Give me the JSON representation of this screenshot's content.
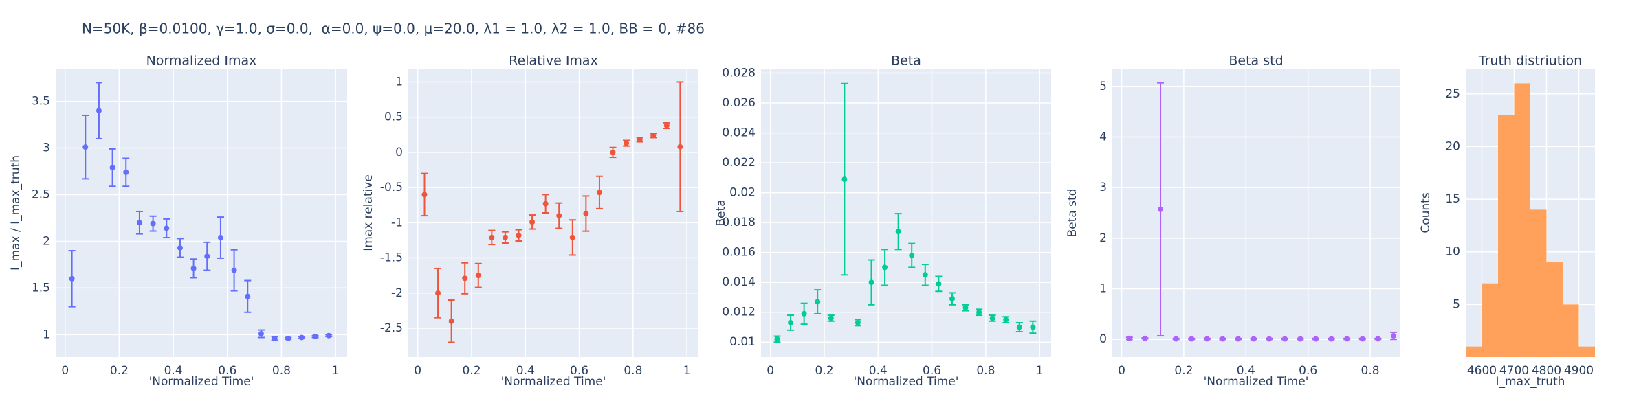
{
  "title": "N=50K, β=0.0100, γ=1.0, σ=0.0,  α=0.0, ψ=0.0, μ=20.0, λ1 = 1.0, λ2 = 1.0, BB = 0, #86",
  "chart_data": [
    {
      "type": "scatter",
      "title": "Normalized Imax",
      "xlabel": "'Normalized Time'",
      "ylabel": "I_max / I_max_truth",
      "color": "#636efa",
      "x": [
        0.025,
        0.075,
        0.125,
        0.175,
        0.225,
        0.275,
        0.325,
        0.375,
        0.425,
        0.475,
        0.525,
        0.575,
        0.625,
        0.675,
        0.725,
        0.775,
        0.825,
        0.875,
        0.925,
        0.975
      ],
      "values": [
        1.6,
        3.01,
        3.4,
        2.79,
        2.74,
        2.2,
        2.19,
        2.14,
        1.93,
        1.71,
        1.84,
        2.04,
        1.69,
        1.41,
        1.01,
        0.96,
        0.96,
        0.97,
        0.98,
        0.99
      ],
      "errors": [
        0.3,
        0.34,
        0.3,
        0.2,
        0.15,
        0.12,
        0.08,
        0.1,
        0.1,
        0.1,
        0.15,
        0.22,
        0.22,
        0.17,
        0.04,
        0.02,
        0.01,
        0.01,
        0.01,
        0.01
      ],
      "xlim": [
        -0.035,
        1.043
      ],
      "ylim": [
        0.76,
        3.85
      ],
      "xticks": [
        0,
        0.2,
        0.4,
        0.6,
        0.8,
        1
      ],
      "yticks": [
        1,
        1.5,
        2,
        2.5,
        3,
        3.5
      ],
      "grid": true
    },
    {
      "type": "scatter",
      "title": "Relative Imax",
      "xlabel": "'Normalized Time'",
      "ylabel": "Imax relative",
      "color": "#ef553b",
      "x": [
        0.025,
        0.075,
        0.125,
        0.175,
        0.225,
        0.275,
        0.325,
        0.375,
        0.425,
        0.475,
        0.525,
        0.575,
        0.625,
        0.675,
        0.725,
        0.775,
        0.825,
        0.875,
        0.925,
        0.975
      ],
      "values": [
        -0.6,
        -2.0,
        -2.4,
        -1.79,
        -1.75,
        -1.21,
        -1.21,
        -1.18,
        -0.99,
        -0.73,
        -0.9,
        -1.21,
        -0.87,
        -0.57,
        0.0,
        0.13,
        0.18,
        0.24,
        0.38,
        0.08
      ],
      "errors": [
        0.3,
        0.35,
        0.3,
        0.22,
        0.17,
        0.1,
        0.08,
        0.08,
        0.1,
        0.13,
        0.18,
        0.25,
        0.25,
        0.23,
        0.07,
        0.04,
        0.03,
        0.03,
        0.04,
        0.92
      ],
      "xlim": [
        -0.035,
        1.043
      ],
      "ylim": [
        -2.91,
        1.19
      ],
      "xticks": [
        0,
        0.2,
        0.4,
        0.6,
        0.8,
        1
      ],
      "yticks": [
        -2.5,
        -2,
        -1.5,
        -1,
        -0.5,
        0,
        0.5,
        1
      ],
      "grid": true
    },
    {
      "type": "scatter",
      "title": "Beta",
      "xlabel": "'Normalized Time'",
      "ylabel": "Beta",
      "color": "#00cc96",
      "x": [
        0.025,
        0.075,
        0.125,
        0.175,
        0.225,
        0.275,
        0.325,
        0.375,
        0.425,
        0.475,
        0.525,
        0.575,
        0.625,
        0.675,
        0.725,
        0.775,
        0.825,
        0.875,
        0.925,
        0.975
      ],
      "values": [
        0.0102,
        0.0113,
        0.0119,
        0.0127,
        0.0116,
        0.0209,
        0.0113,
        0.014,
        0.015,
        0.0174,
        0.0158,
        0.0145,
        0.0139,
        0.0129,
        0.0123,
        0.012,
        0.0116,
        0.0115,
        0.011,
        0.011
      ],
      "errors": [
        0.0002,
        0.0005,
        0.0007,
        0.0008,
        0.0002,
        0.0064,
        0.0002,
        0.0015,
        0.0012,
        0.0012,
        0.0008,
        0.0007,
        0.0005,
        0.0004,
        0.0002,
        0.0002,
        0.0002,
        0.0002,
        0.0003,
        0.0004
      ],
      "xlim": [
        -0.035,
        1.043
      ],
      "ylim": [
        0.009,
        0.0283
      ],
      "xticks": [
        0,
        0.2,
        0.4,
        0.6,
        0.8,
        1
      ],
      "yticks": [
        0.01,
        0.012,
        0.014,
        0.016,
        0.018,
        0.02,
        0.022,
        0.024,
        0.026,
        0.028
      ],
      "grid": true
    },
    {
      "type": "scatter",
      "title": "Beta std",
      "xlabel": "'Normalized Time'",
      "ylabel": "Beta std",
      "color": "#ab63fa",
      "x": [
        0.025,
        0.075,
        0.125,
        0.175,
        0.225,
        0.275,
        0.325,
        0.375,
        0.425,
        0.475,
        0.525,
        0.575,
        0.625,
        0.675,
        0.725,
        0.775,
        0.825,
        0.875
      ],
      "values": [
        0.02,
        0.02,
        2.57,
        0.01,
        0.01,
        0.01,
        0.01,
        0.01,
        0.01,
        0.01,
        0.01,
        0.01,
        0.01,
        0.01,
        0.01,
        0.01,
        0.01,
        0.07
      ],
      "errors": [
        0.02,
        0.01,
        2.5,
        0.01,
        0.01,
        0.01,
        0.01,
        0.01,
        0.01,
        0.01,
        0.01,
        0.01,
        0.01,
        0.01,
        0.01,
        0.01,
        0.01,
        0.07
      ],
      "xlim": [
        -0.03,
        0.895
      ],
      "ylim": [
        -0.35,
        5.35
      ],
      "xticks": [
        0,
        0.2,
        0.4,
        0.6,
        0.8
      ],
      "yticks": [
        0,
        1,
        2,
        3,
        4,
        5
      ],
      "grid": true
    },
    {
      "type": "histogram",
      "title": "Truth distriution",
      "xlabel": "I_max_truth",
      "ylabel": "Counts",
      "color": "#ffa15a",
      "bins": [
        4550,
        4600,
        4650,
        4700,
        4750,
        4800,
        4850,
        4900,
        4950
      ],
      "values": [
        1,
        7,
        23,
        26,
        14,
        9,
        5,
        1
      ],
      "xlim": [
        4550,
        4950
      ],
      "ylim": [
        0,
        27.4
      ],
      "xticks": [
        4600,
        4700,
        4800,
        4900
      ],
      "yticks": [
        5,
        10,
        15,
        20,
        25
      ],
      "grid": true
    }
  ]
}
